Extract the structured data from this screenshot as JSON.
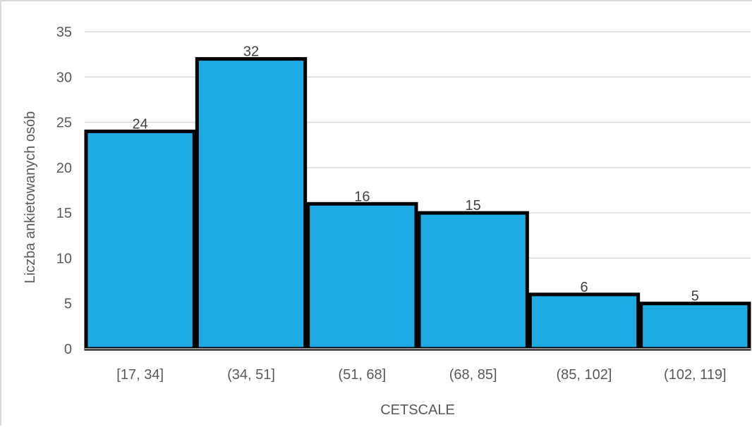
{
  "chart_data": {
    "type": "bar",
    "title": "",
    "xlabel": "CETSCALE",
    "ylabel": "Liczba ankietowanych osób",
    "categories": [
      "[17, 34]",
      "(34, 51]",
      "(51, 68]",
      "(68, 85]",
      "(85, 102]",
      "(102, 119]"
    ],
    "values": [
      24,
      32,
      16,
      15,
      6,
      5
    ],
    "data_labels": [
      "24",
      "32",
      "16",
      "15",
      "6",
      "5"
    ],
    "ylim": [
      0,
      35
    ],
    "yticks": [
      0,
      5,
      10,
      15,
      20,
      25,
      30,
      35
    ],
    "grid": true,
    "legend": "none",
    "colors": {
      "bar_fill": "#1eaae3",
      "bar_edge": "#000000",
      "grid": "#d9d9d9",
      "axis": "#bfbfbf",
      "text": "#595959"
    }
  }
}
